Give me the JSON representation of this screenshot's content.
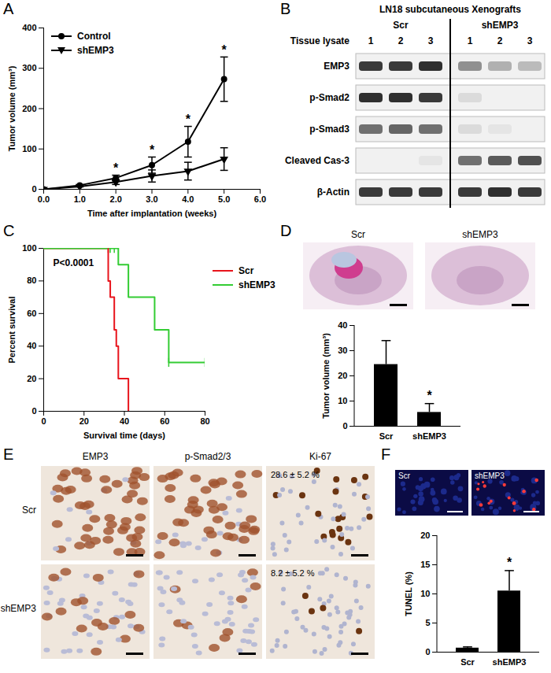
{
  "chart_data": [
    {
      "panel": "A",
      "type": "line",
      "xlabel": "Time after implantation (weeks)",
      "ylabel": "Tumor volume (mm³)",
      "x": [
        0,
        1,
        2,
        3,
        4,
        5
      ],
      "series": [
        {
          "name": "Control",
          "color": "#000000",
          "marker": "circle",
          "values": [
            0,
            10,
            28,
            60,
            118,
            273
          ],
          "errors": [
            0,
            1,
            7,
            20,
            38,
            55
          ]
        },
        {
          "name": "shEMP3",
          "color": "#000000",
          "marker": "triangle-down",
          "values": [
            0,
            7,
            18,
            33,
            45,
            75
          ],
          "errors": [
            0,
            1,
            6,
            15,
            22,
            28
          ]
        }
      ],
      "xlim": [
        0,
        6
      ],
      "xticks": [
        0,
        1,
        2,
        3,
        4,
        5,
        6
      ],
      "ylim": [
        0,
        400
      ],
      "yticks": [
        0,
        100,
        200,
        300,
        400
      ],
      "legend": "top-left",
      "annotations": [
        {
          "text": "*",
          "x": 2
        },
        {
          "text": "*",
          "x": 3
        },
        {
          "text": "*",
          "x": 4
        },
        {
          "text": "*",
          "x": 5
        }
      ]
    },
    {
      "panel": "C",
      "type": "line",
      "line_style": "step",
      "xlabel": "Survival time (days)",
      "ylabel": "Percent survival",
      "series": [
        {
          "name": "Scr",
          "color": "#e8141c",
          "x": [
            0,
            32,
            33,
            35,
            36,
            37,
            42
          ],
          "values": [
            100,
            80,
            70,
            50,
            40,
            20,
            0
          ],
          "censored_x": [
            32
          ],
          "censored_y": [
            100
          ]
        },
        {
          "name": "shEMP3",
          "color": "#33cc33",
          "x": [
            0,
            37,
            42,
            55,
            62,
            80
          ],
          "values": [
            100,
            90,
            70,
            50,
            30,
            30
          ],
          "censored_x": [
            33,
            35,
            62,
            80
          ],
          "censored_y": [
            100,
            100,
            30,
            30
          ]
        }
      ],
      "xlim": [
        0,
        80
      ],
      "xticks": [
        0,
        20,
        40,
        60,
        80
      ],
      "ylim": [
        0,
        100
      ],
      "yticks": [
        0,
        20,
        40,
        60,
        80,
        100
      ],
      "legend": "right",
      "annotations": [
        {
          "text": "P<0.0001"
        }
      ]
    },
    {
      "panel": "D",
      "type": "bar",
      "image_labels": [
        "Scr",
        "shEMP3"
      ],
      "ylabel": "Tumor volume (mm³)",
      "categories": [
        "Scr",
        "shEMP3"
      ],
      "values": [
        24.5,
        5.5
      ],
      "errors": [
        9.5,
        3.5
      ],
      "color": "#000000",
      "ylim": [
        0,
        40
      ],
      "yticks": [
        0,
        10,
        20,
        30,
        40
      ],
      "annotations": [
        {
          "text": "*",
          "category": "shEMP3"
        }
      ]
    },
    {
      "panel": "F",
      "type": "bar",
      "image_labels": [
        "Scr",
        "shEMP3"
      ],
      "ylabel": "TUNEL (%)",
      "categories": [
        "Scr",
        "shEMP3"
      ],
      "values": [
        0.7,
        10.5
      ],
      "errors": [
        0.2,
        3.5
      ],
      "color": "#000000",
      "ylim": [
        0,
        20
      ],
      "yticks": [
        0,
        5,
        10,
        15,
        20
      ],
      "annotations": [
        {
          "text": "*",
          "category": "shEMP3"
        }
      ]
    }
  ],
  "blot": {
    "panel": "B",
    "title": "LN18 subcutaneous Xenografts",
    "groups": [
      "Scr",
      "shEMP3"
    ],
    "lane_header": "Tissue lysate",
    "lanes": [
      "1",
      "2",
      "3",
      "1",
      "2",
      "3"
    ],
    "rows": [
      {
        "name": "EMP3",
        "intensity": [
          0.85,
          0.85,
          0.9,
          0.45,
          0.3,
          0.25
        ]
      },
      {
        "name": "p-Smad2",
        "intensity": [
          0.9,
          0.9,
          0.85,
          0.1,
          0,
          0
        ]
      },
      {
        "name": "p-Smad3",
        "intensity": [
          0.6,
          0.65,
          0.6,
          0.1,
          0.05,
          0
        ]
      },
      {
        "name": "Cleaved Cas-3",
        "intensity": [
          0,
          0,
          0.05,
          0.6,
          0.7,
          0.75
        ]
      },
      {
        "name": "β-Actin",
        "intensity": [
          0.85,
          0.85,
          0.85,
          0.85,
          0.9,
          0.85
        ]
      }
    ]
  },
  "ihc": {
    "panel": "E",
    "columns": [
      "EMP3",
      "p-Smad2/3",
      "Ki-67"
    ],
    "rows": [
      "Scr",
      "shEMP3"
    ],
    "stain_intensity": [
      [
        0.8,
        0.7,
        0.25
      ],
      [
        0.25,
        0.15,
        0.08
      ]
    ],
    "annotations": [
      {
        "row": "Scr",
        "column": "Ki-67",
        "text": "28.6 ± 5.2 %"
      },
      {
        "row": "shEMP3",
        "column": "Ki-67",
        "text": "8.2 ± 5.2 %"
      }
    ]
  }
}
